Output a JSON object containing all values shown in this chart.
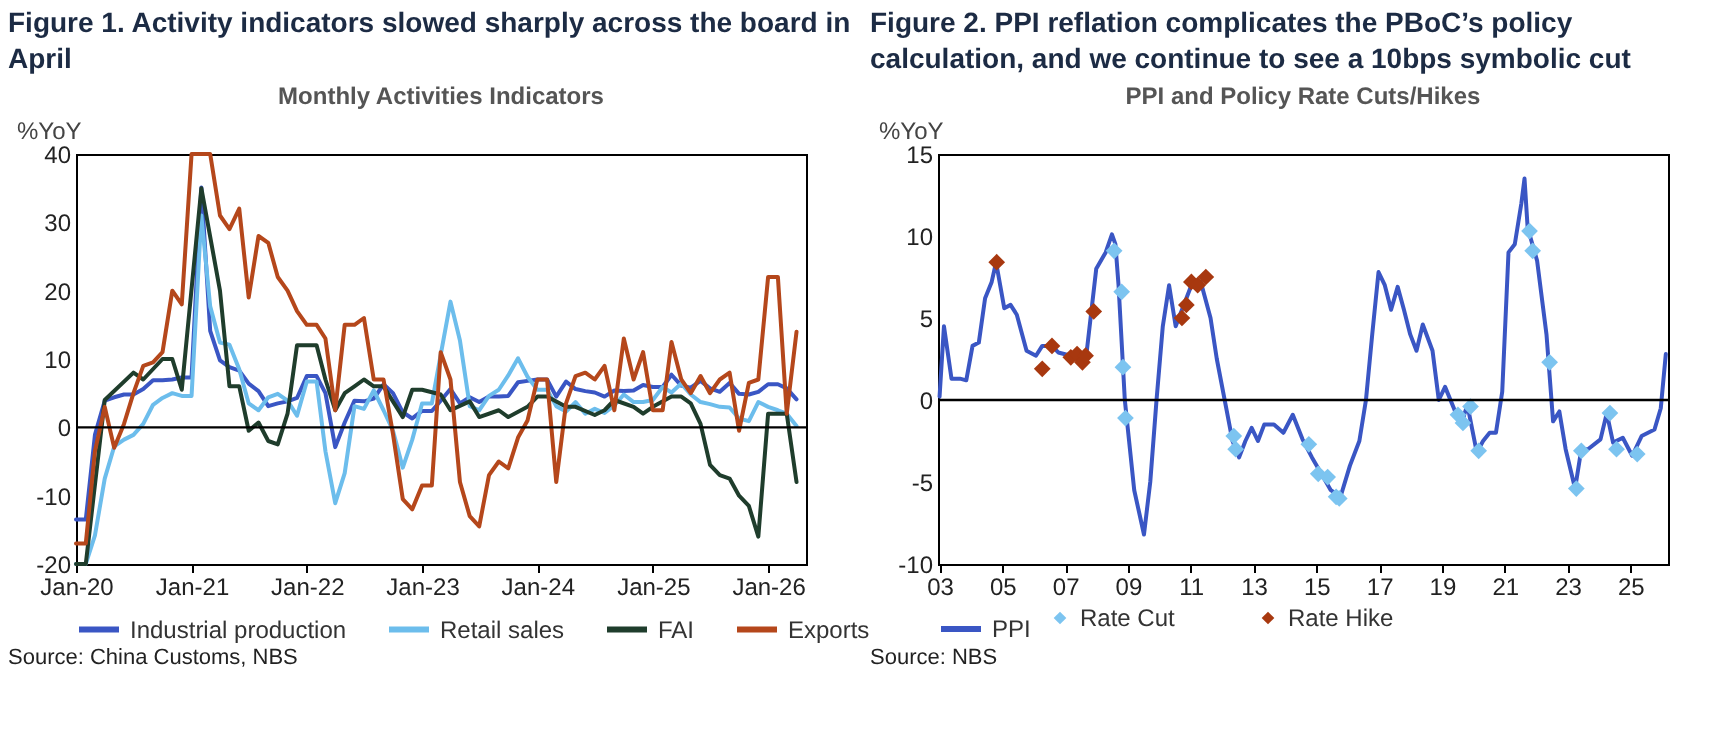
{
  "chart_data": [
    {
      "type": "line",
      "title": "Figure 1. Activity indicators slowed sharply across the board in April",
      "subtitle": "Monthly Activities Indicators",
      "ylabel": "%YoY",
      "annotations": [
        "Source: China Customs, NBS"
      ],
      "x": [
        "2020-01",
        "2020-02",
        "2020-03",
        "2020-04",
        "2020-05",
        "2020-06",
        "2020-07",
        "2020-08",
        "2020-09",
        "2020-10",
        "2020-11",
        "2020-12",
        "2021-01",
        "2021-02",
        "2021-03",
        "2021-04",
        "2021-05",
        "2021-06",
        "2021-07",
        "2021-08",
        "2021-09",
        "2021-10",
        "2021-11",
        "2021-12",
        "2022-01",
        "2022-02",
        "2022-03",
        "2022-04",
        "2022-05",
        "2022-06",
        "2022-07",
        "2022-08",
        "2022-09",
        "2022-10",
        "2022-11",
        "2022-12",
        "2023-01",
        "2023-02",
        "2023-03",
        "2023-04",
        "2023-05",
        "2023-06",
        "2023-07",
        "2023-08",
        "2023-09",
        "2023-10",
        "2023-11",
        "2023-12",
        "2024-01",
        "2024-02",
        "2024-03",
        "2024-04",
        "2024-05",
        "2024-06",
        "2024-07",
        "2024-08",
        "2024-09",
        "2024-10",
        "2024-11",
        "2024-12",
        "2025-01",
        "2025-02",
        "2025-03",
        "2025-04",
        "2025-05",
        "2025-06",
        "2025-07",
        "2025-08",
        "2025-09",
        "2025-10",
        "2025-11",
        "2025-12",
        "2026-01",
        "2026-02",
        "2026-03",
        "2026-04"
      ],
      "series": [
        {
          "name": "Industrial production",
          "color": "#3a56c4",
          "values": [
            -13.5,
            -13.5,
            -1.1,
            3.9,
            4.4,
            4.8,
            4.8,
            5.6,
            6.9,
            6.9,
            7,
            7.3,
            7.3,
            35.1,
            14.1,
            9.8,
            8.8,
            8.3,
            6.4,
            5.3,
            3.1,
            3.5,
            3.8,
            4.3,
            7.5,
            7.5,
            5,
            -2.9,
            0.7,
            3.9,
            3.8,
            4.2,
            6.3,
            5,
            2.2,
            1.3,
            2.4,
            2.4,
            3.9,
            5.6,
            3.5,
            4.4,
            3.7,
            4.5,
            4.5,
            4.6,
            6.6,
            6.8,
            7,
            7,
            4.5,
            6.7,
            5.6,
            5.3,
            5.1,
            4.5,
            5.4,
            5.3,
            5.4,
            6.2,
            5.9,
            5.9,
            7.7,
            6.1,
            5.8,
            6.8,
            5.7,
            5.2,
            6.5,
            4.9,
            4.8,
            5.2,
            6.3,
            6.3,
            5.7,
            4.1
          ]
        },
        {
          "name": "Retail sales",
          "color": "#6cbdec",
          "values": [
            -20,
            -20,
            -15.8,
            -7.5,
            -2.8,
            -1.8,
            -1.1,
            0.5,
            3.3,
            4.3,
            5,
            4.6,
            4.6,
            31,
            17.7,
            12.4,
            12.1,
            8.5,
            3.5,
            2.5,
            4.4,
            4.9,
            3.9,
            1.7,
            6.7,
            6.7,
            -3.5,
            -11.1,
            -6.7,
            3.1,
            2.7,
            5.4,
            2.5,
            -0.5,
            -5.9,
            -1.8,
            3.5,
            3.5,
            10.6,
            18.4,
            12.7,
            3.1,
            2.5,
            4.6,
            5.5,
            7.6,
            10.1,
            7.4,
            5.5,
            5.5,
            3.1,
            2.3,
            3.7,
            2,
            2.7,
            2.1,
            3.2,
            4.8,
            3.7,
            3.7,
            4,
            5.9,
            5.1,
            6.4,
            4.8,
            3.7,
            3.4,
            3,
            2.9,
            1.3,
            0.9,
            3.7,
            3,
            2.5,
            2,
            0.2
          ]
        },
        {
          "name": "FAI",
          "color": "#1f3d2c",
          "x": [
            "2020-01",
            "2020-02",
            "2020-04",
            "2020-07",
            "2020-08",
            "2020-10",
            "2020-11",
            "2020-12",
            "2021-02",
            "2021-04",
            "2021-05",
            "2021-06",
            "2021-07",
            "2021-08",
            "2021-09",
            "2021-10",
            "2021-11",
            "2021-12",
            "2022-02",
            "2022-03",
            "2022-04",
            "2022-05",
            "2022-06",
            "2022-07",
            "2022-08",
            "2022-09",
            "2022-11",
            "2022-12",
            "2023-01",
            "2023-03",
            "2023-04",
            "2023-06",
            "2023-07",
            "2023-09",
            "2023-10",
            "2023-12",
            "2024-01",
            "2024-02",
            "2024-04",
            "2024-05",
            "2024-07",
            "2024-08",
            "2024-09",
            "2024-11",
            "2024-12",
            "2025-01",
            "2025-03",
            "2025-04",
            "2025-05",
            "2025-06",
            "2025-07",
            "2025-08",
            "2025-09",
            "2025-10",
            "2025-11",
            "2025-12",
            "2026-01",
            "2026-03",
            "2026-04"
          ],
          "values": [
            -20,
            -20,
            4,
            8,
            7,
            10,
            10,
            5.5,
            35,
            20,
            6,
            6,
            -0.5,
            0.7,
            -2,
            -2.5,
            2,
            12,
            12,
            7,
            2.5,
            5,
            6,
            7,
            6,
            6,
            1.5,
            5.5,
            5.5,
            4.8,
            2.5,
            3.8,
            1.5,
            2.5,
            1.5,
            3,
            4.5,
            4.5,
            3,
            3,
            1.8,
            2.5,
            4,
            3,
            2,
            3,
            4.5,
            4.5,
            3.5,
            0.5,
            -5.5,
            -7,
            -7.5,
            -10,
            -11.5,
            -16,
            2,
            2,
            -8
          ]
        },
        {
          "name": "Exports",
          "color": "#b5471b",
          "values": [
            -17,
            -17,
            -3.5,
            3,
            -3,
            0.5,
            5,
            9,
            9.5,
            11,
            20,
            18,
            40,
            40,
            40,
            31,
            29,
            32,
            19,
            28,
            27,
            22,
            20,
            17,
            15,
            15,
            13,
            2.5,
            15,
            15,
            16,
            7,
            7,
            -1,
            -10.5,
            -12,
            -8.5,
            -8.5,
            11,
            7,
            -8,
            -13,
            -14.5,
            -7,
            -5,
            -6,
            -1.5,
            1,
            7,
            7,
            -8,
            3.5,
            7.5,
            8,
            7,
            9,
            2.5,
            13,
            7,
            11,
            2.5,
            2.5,
            12.5,
            7,
            5,
            7.5,
            5,
            7,
            8,
            -0.5,
            6.5,
            7,
            22,
            22,
            2,
            14
          ]
        }
      ],
      "xlim": [
        "2020-01",
        "2026-05"
      ],
      "xticks": [
        {
          "value": "2020-01",
          "label": "Jan-20"
        },
        {
          "value": "2021-01",
          "label": "Jan-21"
        },
        {
          "value": "2022-01",
          "label": "Jan-22"
        },
        {
          "value": "2023-01",
          "label": "Jan-23"
        },
        {
          "value": "2024-01",
          "label": "Jan-24"
        },
        {
          "value": "2025-01",
          "label": "Jan-25"
        },
        {
          "value": "2026-01",
          "label": "Jan-26"
        }
      ],
      "ylim": [
        -20,
        40
      ],
      "yticks": [
        -20,
        -10,
        0,
        10,
        20,
        30,
        40
      ],
      "ref_lines": [
        {
          "axis": "y",
          "value": 0,
          "color": "#000000"
        }
      ],
      "legend": "bottom"
    },
    {
      "type": "line",
      "title": "Figure 2. PPI reflation complicates the PBoC’s policy calculation, and we continue to see a 10bps symbolic cut",
      "subtitle": "PPI and Policy Rate Cuts/Hikes",
      "ylabel": "%YoY",
      "annotations": [
        "Source: NBS"
      ],
      "series": [
        {
          "name": "PPI",
          "color": "#3a56c4",
          "x": [
            2003.0,
            2003.14,
            2003.38,
            2003.65,
            2003.85,
            2004.05,
            2004.25,
            2004.45,
            2004.66,
            2004.8,
            2005.06,
            2005.26,
            2005.46,
            2005.77,
            2006.07,
            2006.27,
            2006.58,
            2006.78,
            2007.18,
            2007.48,
            2007.69,
            2007.99,
            2008.29,
            2008.49,
            2008.6,
            2008.7,
            2008.9,
            2009.2,
            2009.51,
            2009.71,
            2009.91,
            2010.11,
            2010.31,
            2010.52,
            2010.72,
            2011.02,
            2011.32,
            2011.63,
            2011.83,
            2012.13,
            2012.33,
            2012.54,
            2012.74,
            2012.94,
            2013.14,
            2013.34,
            2013.65,
            2013.95,
            2014.25,
            2014.56,
            2014.86,
            2015.16,
            2015.46,
            2015.77,
            2016.07,
            2016.37,
            2016.58,
            2016.78,
            2016.98,
            2017.18,
            2017.38,
            2017.59,
            2017.79,
            2017.99,
            2018.19,
            2018.39,
            2018.7,
            2018.9,
            2019.1,
            2019.4,
            2019.61,
            2019.81,
            2020.11,
            2020.31,
            2020.52,
            2020.72,
            2020.92,
            2021.12,
            2021.32,
            2021.53,
            2021.63,
            2021.73,
            2022.03,
            2022.33,
            2022.54,
            2022.74,
            2022.94,
            2023.24,
            2023.44,
            2023.65,
            2024.05,
            2024.25,
            2024.45,
            2024.76,
            2025.06,
            2025.36,
            2025.77,
            2025.97,
            2026.13
          ],
          "values": [
            0.2,
            4.5,
            1.3,
            1.3,
            1.2,
            3.3,
            3.5,
            6.2,
            7.2,
            8.4,
            5.6,
            5.8,
            5.2,
            3.0,
            2.7,
            3.3,
            3.3,
            2.9,
            2.7,
            2.5,
            3.0,
            8.0,
            9.0,
            10.1,
            9.5,
            7.0,
            0,
            -5.5,
            -8.2,
            -5,
            0,
            4.5,
            7,
            4.5,
            5.5,
            7,
            7.2,
            5.0,
            2.5,
            -0.5,
            -2.5,
            -3.5,
            -2.5,
            -1.7,
            -2.5,
            -1.5,
            -1.5,
            -2,
            -0.9,
            -2.4,
            -3.5,
            -4.5,
            -5.5,
            -5.9,
            -4,
            -2.5,
            0,
            4,
            7.8,
            7,
            5.5,
            6.9,
            5.5,
            4,
            3,
            4.6,
            3,
            0,
            0.8,
            -0.6,
            -1.5,
            -0.3,
            -3.2,
            -2.5,
            -2,
            -2,
            0.5,
            9,
            9.5,
            12,
            13.5,
            10.5,
            8.5,
            4,
            -1.3,
            -0.7,
            -3,
            -5.4,
            -3,
            -3,
            -2.4,
            -0.8,
            -2.6,
            -2.3,
            -3.4,
            -2.2,
            -1.8,
            -0.5,
            2.8
          ]
        },
        {
          "name": "Rate Cut",
          "type": "scatter",
          "marker": "diamond",
          "color": "#7cc4f0",
          "x": [
            2008.56,
            2008.8,
            2008.84,
            2008.92,
            2012.37,
            2012.43,
            2014.76,
            2015.06,
            2015.36,
            2015.63,
            2015.73,
            2019.51,
            2019.67,
            2019.91,
            2020.17,
            2021.79,
            2021.89,
            2022.43,
            2023.28,
            2023.44,
            2024.35,
            2024.56,
            2025.22
          ],
          "values": [
            9.1,
            6.6,
            2,
            -1.1,
            -2.2,
            -3,
            -2.7,
            -4.5,
            -4.7,
            -5.9,
            -6,
            -0.9,
            -1.4,
            -0.4,
            -3.1,
            10.3,
            9.1,
            2.3,
            -5.4,
            -3.1,
            -0.8,
            -3,
            -3.3
          ]
        },
        {
          "name": "Rate Hike",
          "type": "scatter",
          "marker": "diamond",
          "color": "#a8380f",
          "x": [
            2004.82,
            2006.27,
            2006.58,
            2007.18,
            2007.38,
            2007.55,
            2007.65,
            2007.91,
            2010.72,
            2010.86,
            2011.02,
            2011.22,
            2011.48
          ],
          "values": [
            8.4,
            1.9,
            3.3,
            2.6,
            2.8,
            2.3,
            2.7,
            5.4,
            5,
            5.8,
            7.2,
            7,
            7.5
          ]
        }
      ],
      "xlim": [
        2002.95,
        2026.2
      ],
      "xticks": [
        {
          "value": 2003,
          "label": "03"
        },
        {
          "value": 2005,
          "label": "05"
        },
        {
          "value": 2007,
          "label": "07"
        },
        {
          "value": 2009,
          "label": "09"
        },
        {
          "value": 2011,
          "label": "11"
        },
        {
          "value": 2013,
          "label": "13"
        },
        {
          "value": 2015,
          "label": "15"
        },
        {
          "value": 2017,
          "label": "17"
        },
        {
          "value": 2019,
          "label": "19"
        },
        {
          "value": 2021,
          "label": "21"
        },
        {
          "value": 2023,
          "label": "23"
        },
        {
          "value": 2025,
          "label": "25"
        }
      ],
      "ylim": [
        -10,
        15
      ],
      "yticks": [
        -10,
        -5,
        0,
        5,
        10,
        15
      ],
      "ref_lines": [
        {
          "axis": "y",
          "value": 0,
          "color": "#000000"
        }
      ],
      "legend": "bottom"
    }
  ]
}
